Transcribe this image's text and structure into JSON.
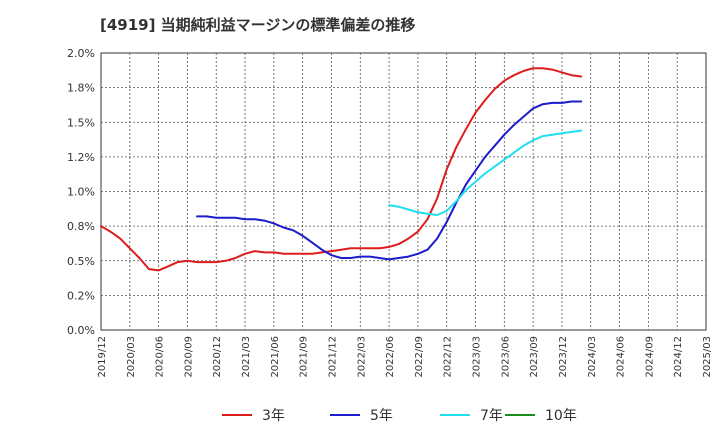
{
  "chart_data": {
    "type": "line",
    "title": "[4919]  当期純利益マージンの標準偏差の推移",
    "xlabel": "",
    "ylabel": "",
    "ylim": [
      0,
      2.0
    ],
    "y_ticks": [
      "0.0%",
      "0.2%",
      "0.5%",
      "0.8%",
      "1.0%",
      "1.2%",
      "1.5%",
      "1.8%",
      "2.0%"
    ],
    "x_ticks": [
      "2019/12",
      "2020/03",
      "2020/06",
      "2020/09",
      "2020/12",
      "2021/03",
      "2021/06",
      "2021/09",
      "2021/12",
      "2022/03",
      "2022/06",
      "2022/09",
      "2022/12",
      "2023/03",
      "2023/06",
      "2023/09",
      "2023/12",
      "2024/03",
      "2024/06",
      "2024/09",
      "2024/12",
      "2025/03"
    ],
    "grid": true,
    "legend_position": "bottom",
    "series": [
      {
        "name": "3年",
        "color": "#dd1c1c",
        "x": [
          0,
          1,
          2,
          3,
          4,
          5,
          6,
          7,
          8,
          9,
          10,
          11,
          12,
          13,
          14,
          15,
          16,
          17,
          18,
          19,
          20,
          21,
          22,
          23,
          24,
          25,
          26,
          27,
          28,
          29,
          30,
          31,
          32,
          33,
          34,
          35,
          36,
          37,
          38,
          39,
          40,
          41,
          42,
          43,
          44,
          45,
          46,
          47,
          48,
          49,
          50,
          51,
          52,
          53,
          54,
          55,
          56,
          57,
          58,
          59,
          60,
          61,
          62,
          63,
          64,
          65
        ],
        "values": [
          0.75,
          0.71,
          0.66,
          0.59,
          0.52,
          0.44,
          0.43,
          0.46,
          0.49,
          0.5,
          0.49,
          0.49,
          0.49,
          0.5,
          0.52,
          0.55,
          0.57,
          0.56,
          0.56,
          0.55,
          0.55,
          0.55,
          0.55,
          0.56,
          0.57,
          0.58,
          0.59,
          0.59,
          0.59,
          0.59,
          0.6,
          0.62,
          0.66,
          0.71,
          0.8,
          0.95,
          1.16,
          1.32,
          1.45,
          1.57,
          1.66,
          1.74,
          1.8,
          1.84,
          1.87,
          1.89,
          1.89,
          1.88,
          1.86,
          1.84,
          1.83,
          null,
          null,
          null,
          null,
          null,
          null,
          null,
          null,
          null,
          null,
          null,
          null,
          null,
          null,
          null
        ]
      },
      {
        "name": "5年",
        "color": "#1c1ccc",
        "x": [
          0,
          1,
          2,
          3,
          4,
          5,
          6,
          7,
          8,
          9,
          10,
          11,
          12,
          13,
          14,
          15,
          16,
          17,
          18,
          19,
          20,
          21,
          22,
          23,
          24,
          25,
          26,
          27,
          28,
          29,
          30,
          31,
          32,
          33,
          34,
          35,
          36,
          37,
          38,
          39,
          40,
          41,
          42,
          43,
          44,
          45,
          46,
          47,
          48,
          49,
          50,
          51,
          52,
          53,
          54,
          55,
          56,
          57,
          58,
          59,
          60,
          61,
          62,
          63,
          64,
          65
        ],
        "values": [
          null,
          null,
          null,
          null,
          null,
          null,
          null,
          null,
          null,
          null,
          0.82,
          0.82,
          0.81,
          0.81,
          0.81,
          0.8,
          0.8,
          0.79,
          0.77,
          0.74,
          0.72,
          0.68,
          0.63,
          0.58,
          0.54,
          0.52,
          0.52,
          0.53,
          0.53,
          0.52,
          0.51,
          0.52,
          0.53,
          0.55,
          0.58,
          0.66,
          0.78,
          0.92,
          1.05,
          1.15,
          1.25,
          1.33,
          1.41,
          1.48,
          1.54,
          1.6,
          1.63,
          1.64,
          1.64,
          1.65,
          1.65,
          null,
          null,
          null,
          null,
          null,
          null,
          null,
          null,
          null,
          null,
          null,
          null,
          null,
          null,
          null
        ]
      },
      {
        "name": "7年",
        "color": "#22ddee",
        "x": [
          0,
          1,
          2,
          3,
          4,
          5,
          6,
          7,
          8,
          9,
          10,
          11,
          12,
          13,
          14,
          15,
          16,
          17,
          18,
          19,
          20,
          21,
          22,
          23,
          24,
          25,
          26,
          27,
          28,
          29,
          30,
          31,
          32,
          33,
          34,
          35,
          36,
          37,
          38,
          39,
          40,
          41,
          42,
          43,
          44,
          45,
          46,
          47,
          48,
          49,
          50,
          51,
          52,
          53,
          54,
          55,
          56,
          57,
          58,
          59,
          60,
          61,
          62,
          63,
          64,
          65
        ],
        "values": [
          null,
          null,
          null,
          null,
          null,
          null,
          null,
          null,
          null,
          null,
          null,
          null,
          null,
          null,
          null,
          null,
          null,
          null,
          null,
          null,
          null,
          null,
          null,
          null,
          null,
          null,
          null,
          null,
          null,
          null,
          0.9,
          0.89,
          0.87,
          0.85,
          0.84,
          0.83,
          0.86,
          0.93,
          1.01,
          1.07,
          1.13,
          1.18,
          1.23,
          1.28,
          1.33,
          1.37,
          1.4,
          1.41,
          1.42,
          1.43,
          1.44,
          null,
          null,
          null,
          null,
          null,
          null,
          null,
          null,
          null,
          null,
          null,
          null,
          null,
          null,
          null
        ]
      },
      {
        "name": "10年",
        "color": "#1c8c1c",
        "x": [],
        "values": []
      }
    ]
  }
}
